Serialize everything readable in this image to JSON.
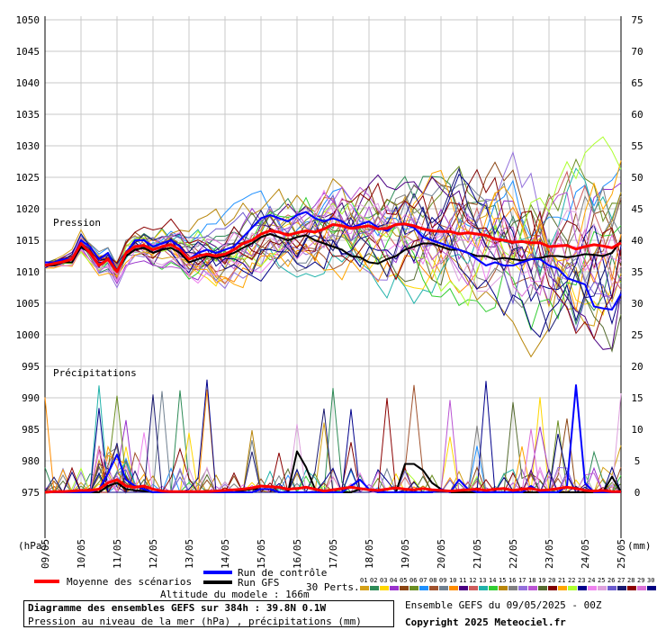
{
  "chart_data": {
    "type": "line",
    "title": "Diagramme des ensembles GEFS sur 384h : 39.8N 0.1W",
    "subtitle": "Pression au niveau de la mer (hPa) , précipitations (mm)",
    "panel_labels": {
      "pressure": "Pression",
      "precip": "Précipitations"
    },
    "left_axis": {
      "unit": "(hPa)",
      "ticks": [
        1050,
        1045,
        1040,
        1035,
        1030,
        1025,
        1020,
        1015,
        1010,
        1005,
        1000,
        995,
        990,
        985,
        980,
        975
      ]
    },
    "right_axis": {
      "unit": "(mm)",
      "ticks": [
        75,
        70,
        65,
        60,
        55,
        50,
        45,
        40,
        35,
        30,
        25,
        20,
        15,
        10,
        5,
        0
      ]
    },
    "x_axis": {
      "tick_labels": [
        "09/05",
        "10/05",
        "11/05",
        "12/05",
        "13/05",
        "14/05",
        "15/05",
        "16/05",
        "17/05",
        "18/05",
        "19/05",
        "20/05",
        "21/05",
        "22/05",
        "23/05",
        "24/05",
        "25/05"
      ]
    },
    "x_hours": [
      0,
      6,
      12,
      18,
      24,
      30,
      36,
      42,
      48,
      54,
      60,
      66,
      72,
      78,
      84,
      90,
      96,
      102,
      108,
      114,
      120,
      126,
      132,
      138,
      144,
      150,
      156,
      162,
      168,
      174,
      180,
      186,
      192,
      198,
      204,
      210,
      216,
      222,
      228,
      234,
      240,
      246,
      252,
      258,
      264,
      270,
      276,
      282,
      288,
      294,
      300,
      306,
      312,
      318,
      324,
      330,
      336,
      342,
      348,
      354,
      360,
      366,
      372,
      378,
      384
    ],
    "series": [
      {
        "name": "Moyenne des scénarios",
        "color": "#ff0000",
        "kind": "pressure",
        "values": [
          1011,
          1011.3,
          1011.6,
          1012,
          1014.5,
          1013,
          1011,
          1012,
          1010,
          1013,
          1014,
          1014.2,
          1013.5,
          1014,
          1014.3,
          1013.5,
          1012,
          1012.5,
          1012.8,
          1012.5,
          1012.8,
          1013.5,
          1014.5,
          1015,
          1016,
          1016.5,
          1016.3,
          1015.8,
          1016.2,
          1016.5,
          1016.3,
          1016.8,
          1017.5,
          1017.3,
          1016.9,
          1017.1,
          1017.3,
          1016.8,
          1016.9,
          1017.5,
          1017.6,
          1017.3,
          1016.8,
          1016.5,
          1016.4,
          1016.4,
          1016,
          1016.2,
          1016,
          1015.8,
          1015.2,
          1015,
          1014.7,
          1014.8,
          1014.6,
          1014.6,
          1014,
          1014.1,
          1014.2,
          1013.6,
          1014,
          1014.3,
          1014.1,
          1013.8,
          1014.6
        ]
      },
      {
        "name": "Run de contrôle",
        "color": "#0000ff",
        "kind": "pressure",
        "values": [
          1011.5,
          1011.5,
          1012,
          1012,
          1015,
          1014,
          1012,
          1013,
          1010,
          1013,
          1015,
          1015,
          1014,
          1014.5,
          1015,
          1014,
          1012,
          1013,
          1013.5,
          1013,
          1013.5,
          1014,
          1015.5,
          1017,
          1018.5,
          1019,
          1018.5,
          1018,
          1019,
          1019.5,
          1018.5,
          1018,
          1018.5,
          1018,
          1017,
          1017.5,
          1018,
          1017,
          1016.5,
          1017.5,
          1017.5,
          1017,
          1015.5,
          1015,
          1014.5,
          1014,
          1013.5,
          1013,
          1012,
          1011,
          1011.5,
          1011,
          1011,
          1011.5,
          1012,
          1012,
          1011,
          1010.5,
          1009,
          1008.5,
          1008,
          1004.5,
          1004.2,
          1004,
          1006.5
        ]
      },
      {
        "name": "Run GFS",
        "color": "#000000",
        "kind": "pressure",
        "values": [
          1011,
          1011,
          1011.5,
          1011.5,
          1014,
          1013,
          1011,
          1012,
          1010,
          1012.5,
          1013.5,
          1013.8,
          1013,
          1013.5,
          1013.8,
          1013,
          1011.5,
          1012,
          1012.5,
          1012.2,
          1012.5,
          1013,
          1013.8,
          1014.5,
          1015.5,
          1016,
          1015.5,
          1015,
          1015.5,
          1015.8,
          1015,
          1014.5,
          1014,
          1013.5,
          1012.5,
          1012.3,
          1011.5,
          1011.3,
          1012,
          1012.5,
          1013.5,
          1014,
          1014.5,
          1014.5,
          1014,
          1013.5,
          1013.5,
          1013,
          1012.5,
          1012.5,
          1012,
          1012.2,
          1012,
          1011.8,
          1012,
          1012.2,
          1012.5,
          1012.5,
          1012.3,
          1012.5,
          1012.8,
          1012.7,
          1012.5,
          1013,
          1015
        ]
      },
      {
        "name": "Moyenne des scénarios",
        "color": "#ff0000",
        "kind": "precip",
        "values": [
          0,
          0.1,
          0.1,
          0.2,
          0.3,
          0.3,
          0.5,
          1.5,
          2,
          1,
          0.8,
          1,
          0.5,
          0.2,
          0.1,
          0.1,
          0.1,
          0.1,
          0.1,
          0.2,
          0.3,
          0.4,
          0.5,
          0.7,
          1,
          0.9,
          0.8,
          0.5,
          0.6,
          0.8,
          0.5,
          0.2,
          0.4,
          0.6,
          0.8,
          0.6,
          0.4,
          0.3,
          0.5,
          0.7,
          0.5,
          0.4,
          0.6,
          0.4,
          0.3,
          0.2,
          0.3,
          0.4,
          0.5,
          0.3,
          0.5,
          0.6,
          0.3,
          0.5,
          0.6,
          0.3,
          0.4,
          0.6,
          0.8,
          0.6,
          0.3,
          0.2,
          0.3,
          0.1,
          0.1
        ]
      },
      {
        "name": "Run de contrôle",
        "color": "#0000ff",
        "kind": "precip",
        "values": [
          0,
          0,
          0,
          0,
          0,
          0,
          0.5,
          3,
          6,
          2,
          1,
          0.5,
          0,
          0,
          0,
          0,
          0,
          0,
          0,
          0,
          0,
          0,
          0,
          0,
          0.5,
          0.5,
          0,
          0,
          0,
          0,
          0,
          0,
          0,
          0,
          1,
          2,
          0.5,
          0,
          0,
          0,
          0,
          0,
          0,
          0,
          0.5,
          0,
          2,
          0.5,
          0,
          0,
          0,
          0,
          0,
          0,
          1,
          0,
          0,
          0,
          1,
          17,
          1.5,
          0,
          0,
          0,
          0
        ]
      },
      {
        "name": "Run GFS",
        "color": "#000000",
        "kind": "precip",
        "values": [
          0,
          0,
          0,
          0,
          0,
          0,
          0,
          1,
          1.5,
          0.5,
          0.3,
          0.2,
          0,
          0,
          0,
          0,
          0,
          0,
          0,
          0,
          0,
          0,
          0.3,
          0.5,
          0.5,
          0.5,
          0,
          0,
          6.5,
          4,
          0.5,
          0,
          0,
          0,
          0,
          0.5,
          0.5,
          0,
          0,
          0,
          4.5,
          4.5,
          3.5,
          1.5,
          0.5,
          0,
          0,
          0,
          0,
          0,
          0,
          0,
          0,
          0,
          0,
          0,
          0,
          0,
          0,
          0,
          0,
          0,
          0,
          2.5,
          0
        ]
      }
    ],
    "legend": {
      "mean": "Moyenne des scénarios",
      "control": "Run de contrôle",
      "gfs": "Run GFS",
      "perts": "30 Perts.",
      "perturbation_ids": [
        "01",
        "02",
        "03",
        "04",
        "05",
        "06",
        "07",
        "08",
        "09",
        "10",
        "11",
        "12",
        "13",
        "14",
        "15",
        "16",
        "17",
        "18",
        "19",
        "20",
        "21",
        "22",
        "23",
        "24",
        "25",
        "26",
        "27",
        "28",
        "29",
        "30"
      ]
    },
    "ylim_pressure": [
      975,
      1050
    ],
    "ylim_precip": [
      0,
      75
    ],
    "grid": true
  },
  "colors": {
    "mean": "#ff0000",
    "control": "#0000ff",
    "gfs": "#000000",
    "grid": "#c8c8c8",
    "perturbations": [
      "#d4a017",
      "#2e8b57",
      "#ffd700",
      "#9932cc",
      "#8b4513",
      "#6b8e23",
      "#1e90ff",
      "#a0522d",
      "#708090",
      "#ff8c00",
      "#4b0082",
      "#cd5c5c",
      "#20b2aa",
      "#32cd32",
      "#b8860b",
      "#808080",
      "#9370db",
      "#ba55d3",
      "#556b2f",
      "#800000",
      "#ffa500",
      "#adff2f",
      "#00008b",
      "#ee82ee",
      "#dda0dd",
      "#6a5acd",
      "#191970",
      "#8b0000",
      "#da70d6",
      "#000080"
    ]
  },
  "footer": {
    "altitude": "Altitude du modele : 166m",
    "title": "Diagramme des ensembles GEFS sur 384h : 39.8N 0.1W",
    "subtitle": "Pression au niveau de la mer (hPa) , précipitations (mm)",
    "run": "Ensemble GEFS du 09/05/2025 - 00Z",
    "copyright": "Copyright 2025 Meteociel.fr"
  }
}
